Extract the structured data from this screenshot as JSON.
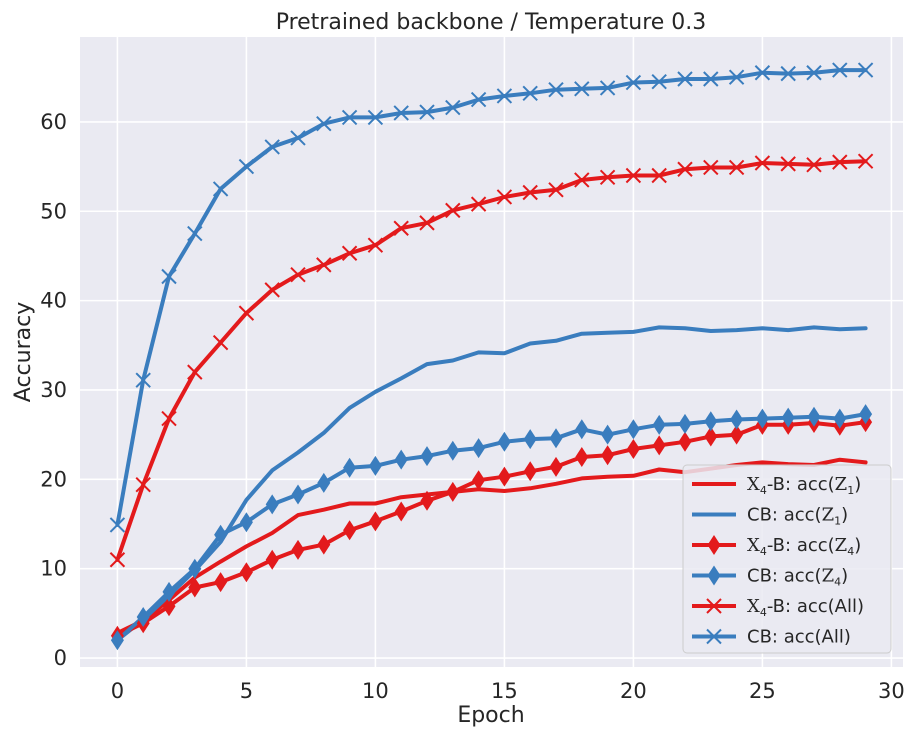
{
  "chart_data": {
    "type": "line",
    "title": "Pretrained backbone / Temperature 0.3",
    "xlabel": "Epoch",
    "ylabel": "Accuracy",
    "xlim": [
      -1.45,
      30.45
    ],
    "ylim": [
      -1.0,
      69.5
    ],
    "xticks": [
      0,
      5,
      10,
      15,
      20,
      25,
      30
    ],
    "yticks": [
      0,
      10,
      20,
      30,
      40,
      50,
      60
    ],
    "grid": true,
    "legend_position": "bottom-right",
    "colors": {
      "red": "#e31a1c",
      "blue": "#3a7dbe",
      "background": "#eaeaf2",
      "grid": "#ffffff"
    },
    "x": [
      0,
      1,
      2,
      3,
      4,
      5,
      6,
      7,
      8,
      9,
      10,
      11,
      12,
      13,
      14,
      15,
      16,
      17,
      18,
      19,
      20,
      21,
      22,
      23,
      24,
      25,
      26,
      27,
      28,
      29
    ],
    "series": [
      {
        "name": "X4-B: acc(Z1)",
        "legend_main": "X",
        "legend_sub": "4",
        "legend_rest": "-B: acc(",
        "legend_var": "Z",
        "legend_var_sub": "1",
        "legend_end": ")",
        "color": "#e31a1c",
        "marker": "none",
        "values": [
          2.8,
          4.2,
          6.5,
          9.0,
          10.8,
          12.5,
          14.0,
          16.0,
          16.6,
          17.3,
          17.3,
          18.0,
          18.3,
          18.6,
          18.9,
          18.7,
          19.0,
          19.5,
          20.1,
          20.3,
          20.4,
          21.1,
          20.8,
          21.2,
          21.6,
          21.9,
          21.7,
          21.6,
          22.2,
          21.9
        ]
      },
      {
        "name": "CB: acc(Z1)",
        "legend_main": "CB: acc(",
        "legend_sub": "",
        "legend_rest": "",
        "legend_var": "Z",
        "legend_var_sub": "1",
        "legend_end": ")",
        "color": "#3a7dbe",
        "marker": "none",
        "values": [
          2.0,
          4.3,
          7.0,
          9.8,
          13.0,
          17.7,
          21.0,
          23.0,
          25.2,
          28.0,
          29.8,
          31.3,
          32.9,
          33.3,
          34.2,
          34.1,
          35.2,
          35.5,
          36.3,
          36.4,
          36.5,
          37.0,
          36.9,
          36.6,
          36.7,
          36.9,
          36.7,
          37.0,
          36.8,
          36.9
        ]
      },
      {
        "name": "X4-B: acc(Z4)",
        "legend_main": "X",
        "legend_sub": "4",
        "legend_rest": "-B: acc(",
        "legend_var": "Z",
        "legend_var_sub": "4",
        "legend_end": ")",
        "color": "#e31a1c",
        "marker": "diamond",
        "values": [
          2.5,
          3.9,
          5.8,
          7.9,
          8.5,
          9.6,
          11.0,
          12.1,
          12.7,
          14.3,
          15.3,
          16.4,
          17.6,
          18.6,
          19.9,
          20.3,
          20.9,
          21.4,
          22.5,
          22.7,
          23.4,
          23.8,
          24.2,
          24.8,
          25.0,
          26.1,
          26.1,
          26.3,
          26.0,
          26.4
        ]
      },
      {
        "name": "CB: acc(Z4)",
        "legend_main": "CB: acc(",
        "legend_sub": "",
        "legend_rest": "",
        "legend_var": "Z",
        "legend_var_sub": "4",
        "legend_end": ")",
        "color": "#3a7dbe",
        "marker": "diamond",
        "values": [
          2.0,
          4.6,
          7.4,
          10.0,
          13.8,
          15.2,
          17.2,
          18.3,
          19.6,
          21.3,
          21.5,
          22.2,
          22.6,
          23.2,
          23.5,
          24.2,
          24.5,
          24.6,
          25.6,
          25.0,
          25.6,
          26.1,
          26.2,
          26.5,
          26.7,
          26.8,
          26.9,
          27.0,
          26.8,
          27.3
        ]
      },
      {
        "name": "X4-B: acc(All)",
        "legend_main": "X",
        "legend_sub": "4",
        "legend_rest": "-B: acc(All)",
        "legend_var": "",
        "legend_var_sub": "",
        "legend_end": "",
        "color": "#e31a1c",
        "marker": "x",
        "values": [
          11.0,
          19.4,
          26.8,
          32.0,
          35.3,
          38.6,
          41.2,
          42.9,
          44.0,
          45.3,
          46.2,
          48.1,
          48.7,
          50.1,
          50.8,
          51.6,
          52.1,
          52.4,
          53.5,
          53.8,
          54.0,
          54.0,
          54.7,
          54.9,
          54.9,
          55.4,
          55.3,
          55.2,
          55.5,
          55.6
        ]
      },
      {
        "name": "CB: acc(All)",
        "legend_main": "CB: acc(All)",
        "legend_sub": "",
        "legend_rest": "",
        "legend_var": "",
        "legend_var_sub": "",
        "legend_end": "",
        "color": "#3a7dbe",
        "marker": "x",
        "values": [
          14.9,
          31.1,
          42.7,
          47.5,
          52.5,
          55.0,
          57.2,
          58.2,
          59.8,
          60.5,
          60.5,
          61.0,
          61.1,
          61.6,
          62.5,
          62.9,
          63.2,
          63.6,
          63.7,
          63.8,
          64.4,
          64.5,
          64.8,
          64.8,
          65.0,
          65.5,
          65.4,
          65.5,
          65.8,
          65.8
        ]
      }
    ]
  }
}
